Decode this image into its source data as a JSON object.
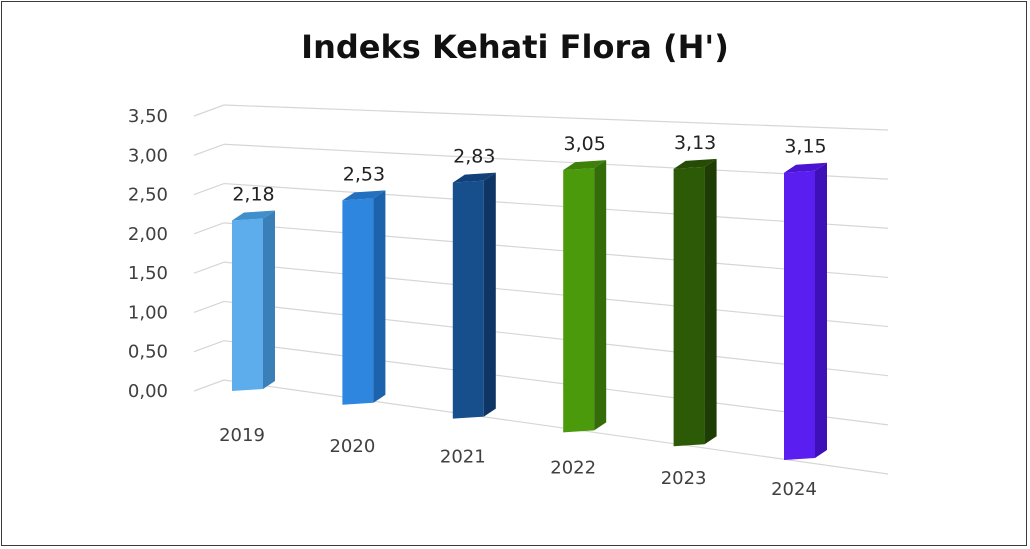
{
  "chart_data": {
    "type": "bar",
    "title": "Indeks Kehati Flora (H')",
    "xlabel": "",
    "ylabel": "",
    "categories": [
      "2019",
      "2020",
      "2021",
      "2022",
      "2023",
      "2024"
    ],
    "values": [
      2.18,
      2.53,
      2.83,
      3.05,
      3.13,
      3.15
    ],
    "value_labels": [
      "2,18",
      "2,53",
      "2,83",
      "3,05",
      "3,13",
      "3,15"
    ],
    "ylim": [
      0,
      3.5
    ],
    "yticks": [
      "0,00",
      "0,50",
      "1,00",
      "1,50",
      "2,00",
      "2,50",
      "3,00",
      "3,50"
    ],
    "grid": true,
    "legend": "none",
    "style": "3d-column",
    "colors": [
      "#5DADEC",
      "#2E86DE",
      "#174E8C",
      "#4A9A0C",
      "#2D5A06",
      "#5B1EF0"
    ],
    "side_colors": [
      "#3B7FB8",
      "#1D62AC",
      "#0E3564",
      "#336C08",
      "#1E3D04",
      "#3E10B8"
    ],
    "top_colors": [
      "#3F8FCC",
      "#2470C0",
      "#12407A",
      "#3D800A",
      "#254B05",
      "#4A14D0"
    ]
  }
}
